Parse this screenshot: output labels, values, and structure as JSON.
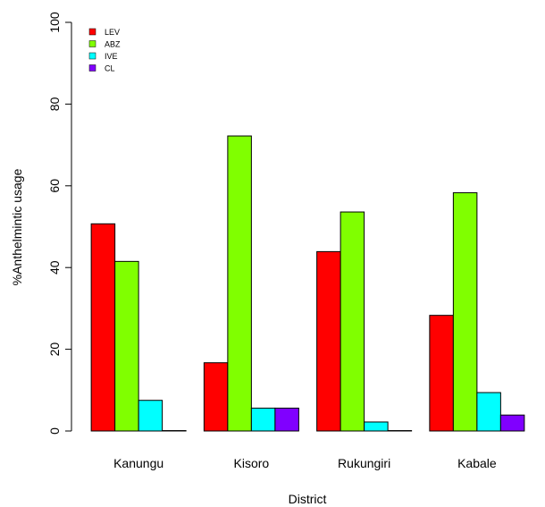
{
  "chart_data": {
    "type": "bar",
    "title": "",
    "xlabel": "District",
    "ylabel": "%Anthelmintic usage",
    "categories": [
      "Kanungu",
      "Kisoro",
      "Rukungiri",
      "Kabale"
    ],
    "series": [
      {
        "name": "LEV",
        "color": "#ff0000",
        "values": [
          50.7,
          16.7,
          43.9,
          28.3
        ]
      },
      {
        "name": "ABZ",
        "color": "#80ff00",
        "values": [
          41.5,
          72.2,
          53.6,
          58.3
        ]
      },
      {
        "name": "IVE",
        "color": "#00ffff",
        "values": [
          7.5,
          5.6,
          2.2,
          9.4
        ]
      },
      {
        "name": "CL",
        "color": "#8000ff",
        "values": [
          0.1,
          5.6,
          0.1,
          3.9
        ]
      }
    ],
    "ylim": [
      0,
      100
    ],
    "yticks": [
      0,
      20,
      40,
      60,
      80,
      100
    ],
    "grid": false,
    "legend_position": "top-left"
  }
}
